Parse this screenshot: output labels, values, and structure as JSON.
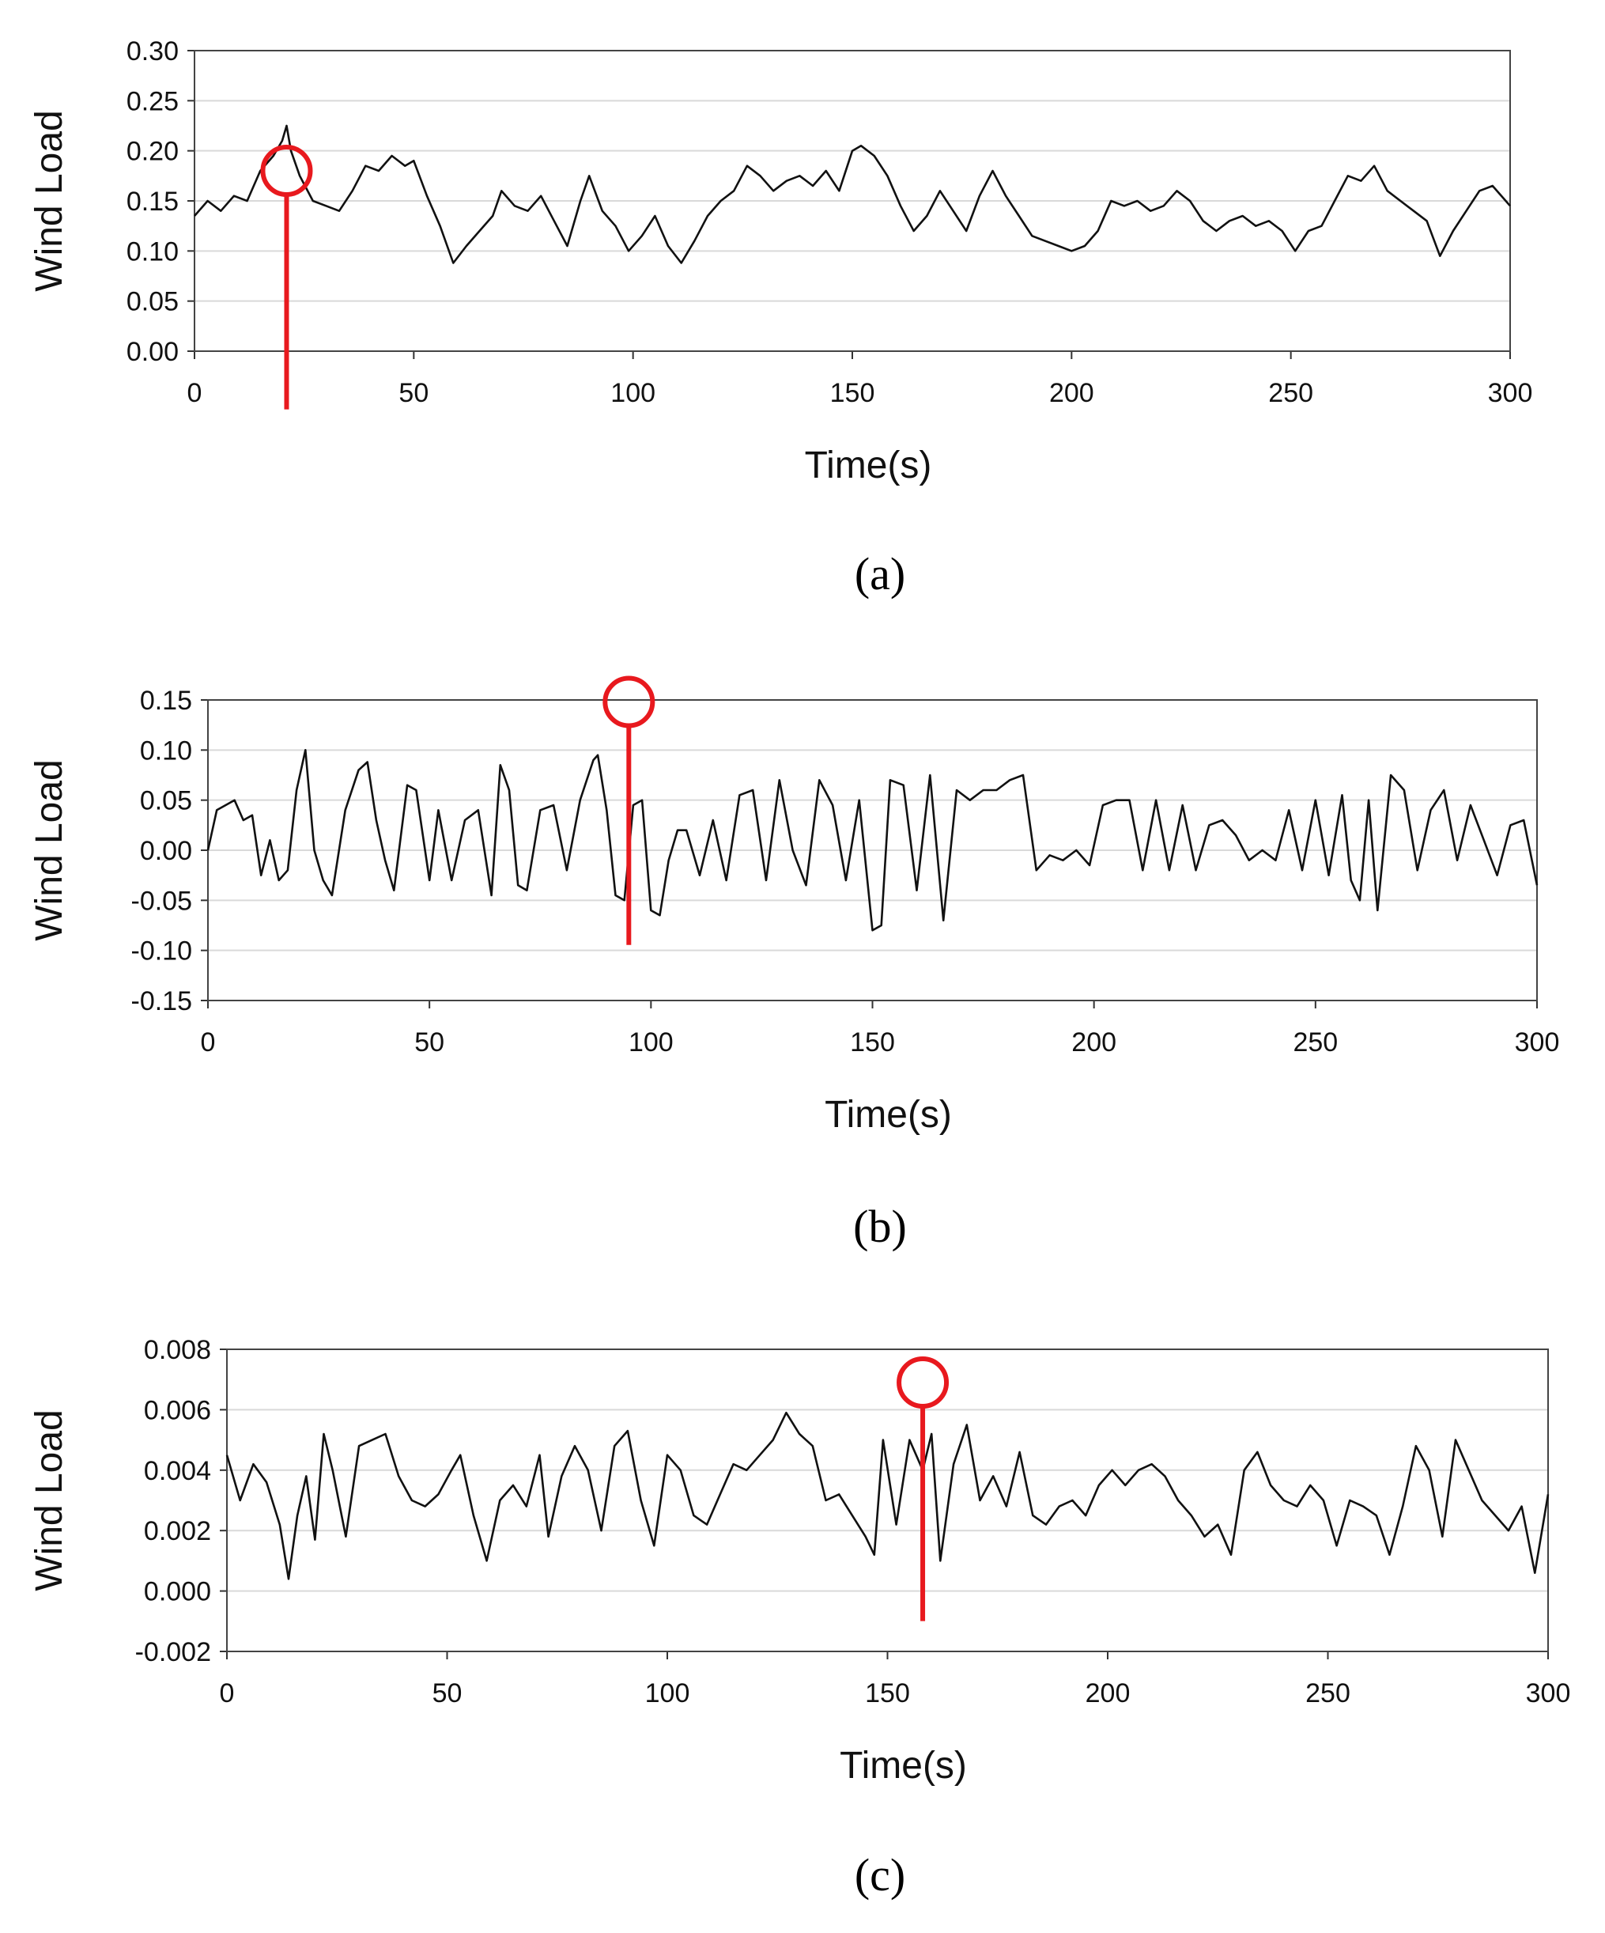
{
  "chart_data": [
    {
      "type": "line",
      "caption": "(a)",
      "xlabel": "Time(s)",
      "ylabel": "Wind Load",
      "xlim": [
        0,
        300
      ],
      "ylim": [
        0.0,
        0.3
      ],
      "xticks": [
        "0",
        "50",
        "100",
        "150",
        "200",
        "250",
        "300"
      ],
      "yticks": [
        "0.00",
        "0.05",
        "0.10",
        "0.15",
        "0.20",
        "0.25",
        "0.30"
      ],
      "grid": "horizontal",
      "line_color": "#111111",
      "marker_color": "#e8191e",
      "marker": {
        "x": 21,
        "y": 0.18
      },
      "x": [
        0,
        3,
        6,
        9,
        12,
        15,
        18,
        20,
        21,
        22,
        24,
        27,
        30,
        33,
        36,
        39,
        42,
        45,
        48,
        50,
        53,
        56,
        59,
        62,
        65,
        68,
        70,
        73,
        76,
        79,
        82,
        85,
        88,
        90,
        93,
        96,
        99,
        102,
        105,
        108,
        111,
        114,
        117,
        120,
        123,
        126,
        129,
        132,
        135,
        138,
        141,
        144,
        147,
        150,
        152,
        155,
        158,
        161,
        164,
        167,
        170,
        173,
        176,
        179,
        182,
        185,
        188,
        191,
        194,
        197,
        200,
        203,
        206,
        209,
        212,
        215,
        218,
        221,
        224,
        227,
        230,
        233,
        236,
        239,
        242,
        245,
        248,
        251,
        254,
        257,
        260,
        263,
        266,
        269,
        272,
        275,
        278,
        281,
        284,
        287,
        290,
        293,
        296,
        300
      ],
      "y": [
        0.135,
        0.15,
        0.14,
        0.155,
        0.15,
        0.18,
        0.195,
        0.21,
        0.225,
        0.2,
        0.175,
        0.15,
        0.145,
        0.14,
        0.16,
        0.185,
        0.18,
        0.195,
        0.185,
        0.19,
        0.155,
        0.125,
        0.088,
        0.105,
        0.12,
        0.135,
        0.16,
        0.145,
        0.14,
        0.155,
        0.13,
        0.105,
        0.15,
        0.175,
        0.14,
        0.125,
        0.1,
        0.115,
        0.135,
        0.105,
        0.088,
        0.11,
        0.135,
        0.15,
        0.16,
        0.185,
        0.175,
        0.16,
        0.17,
        0.175,
        0.165,
        0.18,
        0.16,
        0.2,
        0.205,
        0.195,
        0.175,
        0.145,
        0.12,
        0.135,
        0.16,
        0.14,
        0.12,
        0.155,
        0.18,
        0.155,
        0.135,
        0.115,
        0.11,
        0.105,
        0.1,
        0.105,
        0.12,
        0.15,
        0.145,
        0.15,
        0.14,
        0.145,
        0.16,
        0.15,
        0.13,
        0.12,
        0.13,
        0.135,
        0.125,
        0.13,
        0.12,
        0.1,
        0.12,
        0.125,
        0.15,
        0.175,
        0.17,
        0.185,
        0.16,
        0.15,
        0.14,
        0.13,
        0.095,
        0.12,
        0.14,
        0.16,
        0.165,
        0.145
      ]
    },
    {
      "type": "line",
      "caption": "(b)",
      "xlabel": "Time(s)",
      "ylabel": "Wind Load",
      "xlim": [
        0,
        300
      ],
      "ylim": [
        -0.15,
        0.15
      ],
      "xticks": [
        "0",
        "50",
        "100",
        "150",
        "200",
        "250",
        "300"
      ],
      "yticks": [
        "-0.15",
        "-0.10",
        "-0.05",
        "0.00",
        "0.05",
        "0.10",
        "0.15"
      ],
      "grid": "horizontal",
      "line_color": "#111111",
      "marker_color": "#e8191e",
      "marker": {
        "x": 95,
        "y": 0.148
      },
      "x": [
        0,
        2,
        4,
        6,
        8,
        10,
        12,
        14,
        16,
        18,
        20,
        22,
        24,
        26,
        28,
        31,
        34,
        36,
        38,
        40,
        42,
        45,
        47,
        50,
        52,
        55,
        58,
        61,
        64,
        66,
        68,
        70,
        72,
        75,
        78,
        81,
        84,
        87,
        88,
        90,
        92,
        94,
        96,
        98,
        100,
        102,
        104,
        106,
        108,
        111,
        114,
        117,
        120,
        123,
        126,
        129,
        132,
        135,
        138,
        141,
        144,
        147,
        150,
        152,
        154,
        157,
        160,
        163,
        166,
        169,
        172,
        175,
        178,
        181,
        184,
        187,
        190,
        193,
        196,
        199,
        202,
        205,
        208,
        211,
        214,
        217,
        220,
        223,
        226,
        229,
        232,
        235,
        238,
        241,
        244,
        247,
        250,
        253,
        256,
        258,
        260,
        262,
        264,
        267,
        270,
        273,
        276,
        279,
        282,
        285,
        288,
        291,
        294,
        297,
        300
      ],
      "y": [
        0.0,
        0.04,
        0.045,
        0.05,
        0.03,
        0.035,
        -0.025,
        0.01,
        -0.03,
        -0.02,
        0.06,
        0.1,
        0.0,
        -0.03,
        -0.045,
        0.04,
        0.08,
        0.088,
        0.03,
        -0.01,
        -0.04,
        0.065,
        0.06,
        -0.03,
        0.04,
        -0.03,
        0.03,
        0.04,
        -0.045,
        0.085,
        0.06,
        -0.035,
        -0.04,
        0.04,
        0.045,
        -0.02,
        0.05,
        0.09,
        0.095,
        0.04,
        -0.045,
        -0.05,
        0.045,
        0.05,
        -0.06,
        -0.065,
        -0.01,
        0.02,
        0.02,
        -0.025,
        0.03,
        -0.03,
        0.055,
        0.06,
        -0.03,
        0.07,
        0.0,
        -0.035,
        0.07,
        0.045,
        -0.03,
        0.05,
        -0.08,
        -0.075,
        0.07,
        0.065,
        -0.04,
        0.075,
        -0.07,
        0.06,
        0.05,
        0.06,
        0.06,
        0.07,
        0.075,
        -0.02,
        -0.005,
        -0.01,
        0.0,
        -0.015,
        0.045,
        0.05,
        0.05,
        -0.02,
        0.05,
        -0.02,
        0.045,
        -0.02,
        0.025,
        0.03,
        0.015,
        -0.01,
        0.0,
        -0.01,
        0.04,
        -0.02,
        0.05,
        -0.025,
        0.055,
        -0.03,
        -0.05,
        0.05,
        -0.06,
        0.075,
        0.06,
        -0.02,
        0.04,
        0.06,
        -0.01,
        0.045,
        0.01,
        -0.025,
        0.025,
        0.03,
        -0.035
      ]
    },
    {
      "type": "line",
      "caption": "(c)",
      "xlabel": "Time(s)",
      "ylabel": "Wind Load",
      "xlim": [
        0,
        300
      ],
      "ylim": [
        -0.002,
        0.008
      ],
      "xticks": [
        "0",
        "50",
        "100",
        "150",
        "200",
        "250",
        "300"
      ],
      "yticks": [
        "-0.002",
        "0.000",
        "0.002",
        "0.004",
        "0.006",
        "0.008"
      ],
      "grid": "horizontal",
      "line_color": "#111111",
      "marker_color": "#e8191e",
      "marker": {
        "x": 158,
        "y": 0.0069
      },
      "x": [
        0,
        3,
        6,
        9,
        12,
        14,
        16,
        18,
        20,
        22,
        24,
        27,
        30,
        33,
        36,
        39,
        42,
        45,
        48,
        51,
        53,
        56,
        59,
        62,
        65,
        68,
        71,
        73,
        76,
        79,
        82,
        85,
        88,
        91,
        94,
        97,
        100,
        103,
        106,
        109,
        112,
        115,
        118,
        121,
        124,
        127,
        130,
        133,
        136,
        139,
        142,
        145,
        147,
        149,
        152,
        155,
        158,
        160,
        162,
        165,
        168,
        171,
        174,
        177,
        180,
        183,
        186,
        189,
        192,
        195,
        198,
        201,
        204,
        207,
        210,
        213,
        216,
        219,
        222,
        225,
        228,
        231,
        234,
        237,
        240,
        243,
        246,
        249,
        252,
        255,
        258,
        261,
        264,
        267,
        270,
        273,
        276,
        279,
        282,
        285,
        288,
        291,
        294,
        297,
        300
      ],
      "y": [
        0.0045,
        0.003,
        0.0042,
        0.0036,
        0.0022,
        0.0004,
        0.0025,
        0.0038,
        0.0017,
        0.0052,
        0.004,
        0.0018,
        0.0048,
        0.005,
        0.0052,
        0.0038,
        0.003,
        0.0028,
        0.0032,
        0.004,
        0.0045,
        0.0025,
        0.001,
        0.003,
        0.0035,
        0.0028,
        0.0045,
        0.0018,
        0.0038,
        0.0048,
        0.004,
        0.002,
        0.0048,
        0.0053,
        0.003,
        0.0015,
        0.0045,
        0.004,
        0.0025,
        0.0022,
        0.0032,
        0.0042,
        0.004,
        0.0045,
        0.005,
        0.0059,
        0.0052,
        0.0048,
        0.003,
        0.0032,
        0.0025,
        0.0018,
        0.0012,
        0.005,
        0.0022,
        0.005,
        0.004,
        0.0052,
        0.001,
        0.0042,
        0.0055,
        0.003,
        0.0038,
        0.0028,
        0.0046,
        0.0025,
        0.0022,
        0.0028,
        0.003,
        0.0025,
        0.0035,
        0.004,
        0.0035,
        0.004,
        0.0042,
        0.0038,
        0.003,
        0.0025,
        0.0018,
        0.0022,
        0.0012,
        0.004,
        0.0046,
        0.0035,
        0.003,
        0.0028,
        0.0035,
        0.003,
        0.0015,
        0.003,
        0.0028,
        0.0025,
        0.0012,
        0.0028,
        0.0048,
        0.004,
        0.0018,
        0.005,
        0.004,
        0.003,
        0.0025,
        0.002,
        0.0028,
        0.0006,
        0.0032
      ]
    }
  ]
}
